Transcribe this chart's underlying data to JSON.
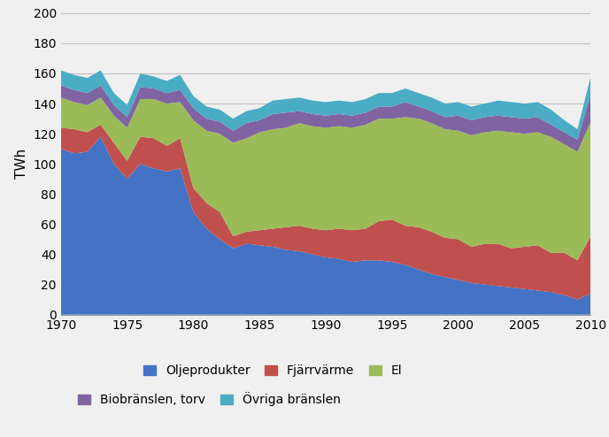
{
  "years": [
    1970,
    1971,
    1972,
    1973,
    1974,
    1975,
    1976,
    1977,
    1978,
    1979,
    1980,
    1981,
    1982,
    1983,
    1984,
    1985,
    1986,
    1987,
    1988,
    1989,
    1990,
    1991,
    1992,
    1993,
    1994,
    1995,
    1996,
    1997,
    1998,
    1999,
    2000,
    2001,
    2002,
    2003,
    2004,
    2005,
    2006,
    2007,
    2008,
    2009,
    2010
  ],
  "oljeprodukter": [
    110,
    107,
    108,
    118,
    100,
    90,
    100,
    97,
    95,
    97,
    68,
    57,
    50,
    44,
    47,
    46,
    45,
    43,
    42,
    40,
    38,
    37,
    35,
    36,
    36,
    35,
    33,
    30,
    27,
    25,
    23,
    21,
    20,
    19,
    18,
    17,
    16,
    15,
    13,
    10,
    14
  ],
  "fjarrvarme": [
    14,
    16,
    13,
    8,
    14,
    12,
    18,
    20,
    17,
    20,
    16,
    17,
    18,
    8,
    8,
    10,
    12,
    15,
    17,
    17,
    18,
    20,
    21,
    21,
    26,
    28,
    26,
    28,
    28,
    26,
    27,
    24,
    27,
    28,
    26,
    28,
    30,
    26,
    28,
    26,
    38
  ],
  "el": [
    20,
    18,
    18,
    18,
    18,
    22,
    25,
    26,
    28,
    24,
    45,
    48,
    52,
    62,
    62,
    65,
    66,
    66,
    68,
    68,
    68,
    68,
    68,
    69,
    68,
    67,
    72,
    72,
    72,
    72,
    72,
    74,
    74,
    75,
    77,
    75,
    75,
    77,
    72,
    72,
    76
  ],
  "biobranslen_torv": [
    8,
    8,
    8,
    8,
    7,
    7,
    8,
    7,
    7,
    8,
    8,
    8,
    8,
    8,
    10,
    8,
    10,
    10,
    8,
    8,
    8,
    8,
    8,
    8,
    8,
    8,
    10,
    8,
    8,
    8,
    10,
    10,
    10,
    10,
    10,
    10,
    10,
    8,
    8,
    8,
    18
  ],
  "ovriga_branslen": [
    10,
    10,
    10,
    10,
    8,
    8,
    9,
    8,
    8,
    10,
    8,
    8,
    8,
    8,
    8,
    8,
    9,
    9,
    9,
    9,
    9,
    9,
    9,
    9,
    9,
    9,
    9,
    9,
    9,
    9,
    9,
    9,
    9,
    10,
    10,
    10,
    10,
    10,
    8,
    7,
    12
  ],
  "colors": {
    "oljeprodukter": "#4472C4",
    "fjarrvarme": "#C0504D",
    "el": "#9BBB59",
    "biobranslen_torv": "#8064A2",
    "ovriga_branslen": "#4BACC6"
  },
  "ylabel": "TWh",
  "ylim": [
    0,
    200
  ],
  "yticks": [
    0,
    20,
    40,
    60,
    80,
    100,
    120,
    140,
    160,
    180,
    200
  ],
  "xlim": [
    1970,
    2010
  ],
  "xticks": [
    1970,
    1975,
    1980,
    1985,
    1990,
    1995,
    2000,
    2005,
    2010
  ],
  "legend_labels": [
    "Oljeprodukter",
    "Fjärrvärme",
    "El",
    "Biobränslen, torv",
    "Övriga bränslen"
  ],
  "background_color": "#f2f2f2"
}
